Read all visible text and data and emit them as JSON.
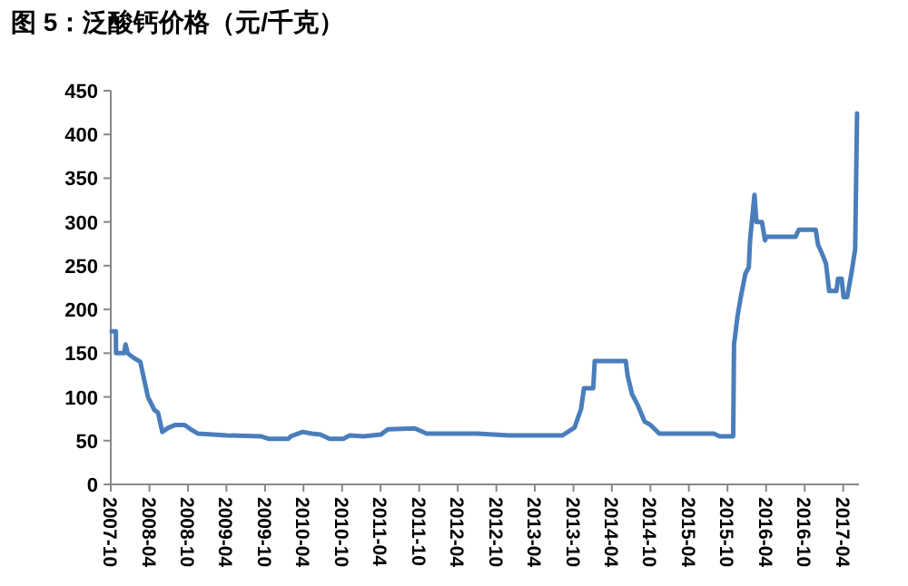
{
  "chart_data": {
    "type": "line",
    "title": "图 5：泛酸钙价格（元/千克）",
    "x": [
      "2007-10-05",
      "2007-10-25",
      "2007-10-26",
      "2007-12-03",
      "2007-12-10",
      "2007-12-20",
      "2008-01-15",
      "2008-02-18",
      "2008-03-25",
      "2008-04-25",
      "2008-05-12",
      "2008-06-01",
      "2008-07-01",
      "2008-08-03",
      "2008-09-15",
      "2008-10-20",
      "2008-11-18",
      "2009-04-03",
      "2009-09-10",
      "2009-10-20",
      "2010-01-18",
      "2010-02-01",
      "2010-03-28",
      "2010-05-10",
      "2010-06-20",
      "2010-08-03",
      "2010-10-06",
      "2010-11-06",
      "2011-01-10",
      "2011-04-03",
      "2011-05-06",
      "2011-09-10",
      "2011-11-06",
      "2012-07-03",
      "2012-11-28",
      "2013-08-10",
      "2013-10-06",
      "2013-11-06",
      "2013-11-20",
      "2014-01-03",
      "2014-01-10",
      "2014-06-06",
      "2014-06-15",
      "2014-07-06",
      "2014-08-03",
      "2014-09-03",
      "2014-10-01",
      "2014-11-12",
      "2015-07-28",
      "2015-08-25",
      "2015-10-28",
      "2015-11-01",
      "2015-11-18",
      "2015-12-03",
      "2015-12-25",
      "2016-01-10",
      "2016-01-16",
      "2016-02-06",
      "2016-02-15",
      "2016-03-12",
      "2016-03-27",
      "2016-04-01",
      "2016-08-18",
      "2016-09-03",
      "2016-11-22",
      "2016-12-03",
      "2016-12-20",
      "2017-01-10",
      "2017-01-25",
      "2017-02-28",
      "2017-03-08",
      "2017-03-25",
      "2017-04-03",
      "2017-04-20",
      "2017-05-10",
      "2017-05-28",
      "2017-06-06"
    ],
    "series": [
      {
        "color": "#4a7ebb",
        "values": [
          175,
          175,
          150,
          150,
          160,
          150,
          145,
          140,
          100,
          85,
          82,
          60,
          65,
          68,
          68,
          62,
          58,
          56,
          55,
          52,
          52,
          55,
          60,
          58,
          57,
          52,
          52,
          56,
          55,
          57,
          63,
          64,
          58,
          58,
          56,
          56,
          65,
          86,
          110,
          110,
          141,
          141,
          124,
          103,
          90,
          72,
          68,
          58,
          58,
          55,
          55,
          160,
          193,
          214,
          241,
          248,
          279,
          331,
          300,
          300,
          279,
          283,
          283,
          291,
          291,
          274,
          265,
          252,
          221,
          221,
          235,
          235,
          214,
          214,
          241,
          269,
          424
        ]
      }
    ],
    "xlim": [
      "2007-10",
      "2017-06-15"
    ],
    "xticks": [
      "2007-10",
      "2008-04",
      "2008-10",
      "2009-04",
      "2009-10",
      "2010-04",
      "2010-10",
      "2011-04",
      "2011-10",
      "2012-04",
      "2012-10",
      "2013-04",
      "2013-10",
      "2014-04",
      "2014-10",
      "2015-04",
      "2015-10",
      "2016-04",
      "2016-10",
      "2017-04"
    ],
    "ylim": [
      0,
      450
    ],
    "yticks": [
      0,
      50,
      100,
      150,
      200,
      250,
      300,
      350,
      400,
      450
    ],
    "grid": false,
    "marker": "none",
    "line_style": "solid"
  }
}
